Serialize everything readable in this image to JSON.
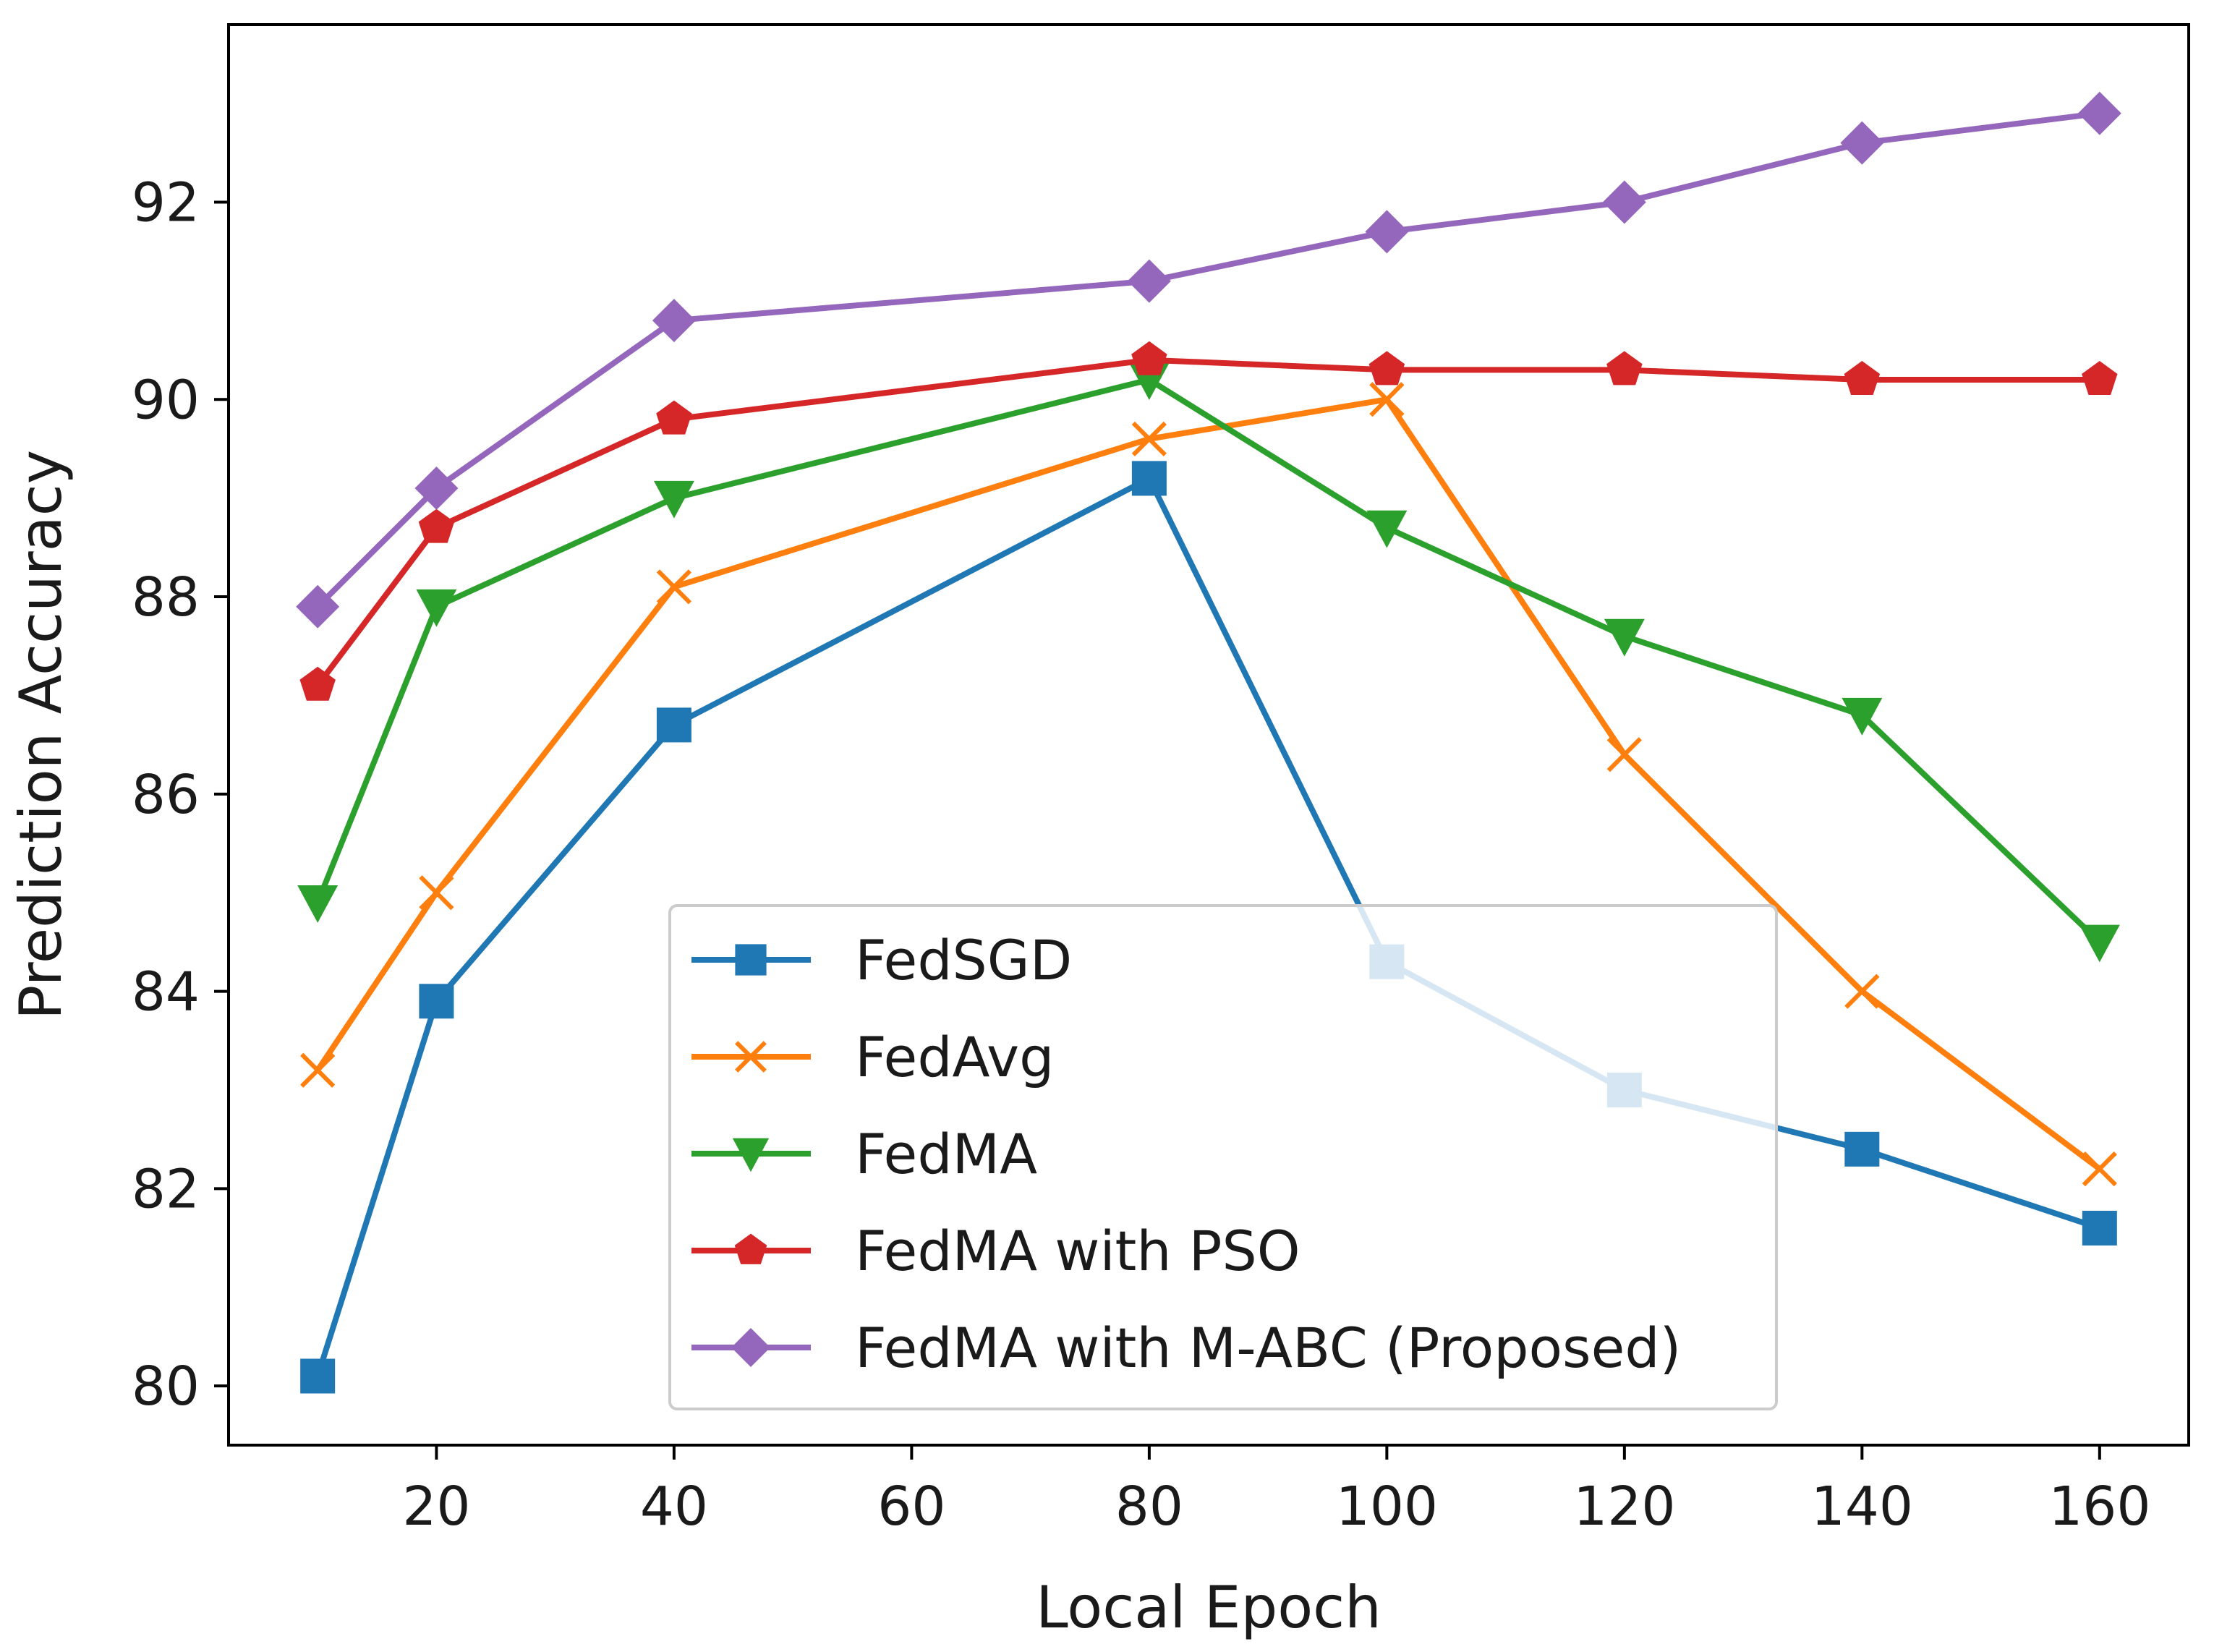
{
  "chart_data": {
    "type": "line",
    "title": "",
    "xlabel": "Local Epoch",
    "ylabel": "Prediction Accuracy",
    "x": [
      10,
      20,
      40,
      80,
      100,
      120,
      140,
      160
    ],
    "xlim": [
      2.5,
      167.5
    ],
    "ylim": [
      79.4,
      93.8
    ],
    "xticks": [
      20,
      40,
      60,
      80,
      100,
      120,
      140,
      160
    ],
    "yticks": [
      80,
      82,
      84,
      86,
      88,
      90,
      92
    ],
    "grid": false,
    "legend_position": "lower-center",
    "series": [
      {
        "name": "FedSGD",
        "color": "#1f77b4",
        "marker": "square",
        "values": [
          80.1,
          83.9,
          86.7,
          89.2,
          84.3,
          83.0,
          82.4,
          81.6
        ]
      },
      {
        "name": "FedAvg",
        "color": "#ff7f0e",
        "marker": "x",
        "values": [
          83.2,
          85.0,
          88.1,
          89.6,
          90.0,
          86.4,
          84.0,
          82.2
        ]
      },
      {
        "name": "FedMA",
        "color": "#2ca02c",
        "marker": "triangle-down",
        "values": [
          84.9,
          87.9,
          89.0,
          90.2,
          88.7,
          87.6,
          86.8,
          84.5
        ]
      },
      {
        "name": "FedMA with PSO",
        "color": "#d62728",
        "marker": "pentagon",
        "values": [
          87.1,
          88.7,
          89.8,
          90.4,
          90.3,
          90.3,
          90.2,
          90.2
        ]
      },
      {
        "name": "FedMA with M-ABC (Proposed)",
        "color": "#9467bd",
        "marker": "diamond",
        "values": [
          87.9,
          89.1,
          90.8,
          91.2,
          91.7,
          92.0,
          92.6,
          92.9
        ]
      }
    ]
  }
}
